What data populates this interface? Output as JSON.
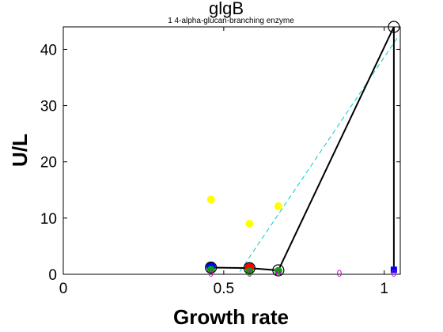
{
  "chart_data": {
    "type": "scatter",
    "title": "glgB",
    "subtitle": "1 4-alpha-glucan-branching enzyme",
    "xlabel": "Growth rate",
    "ylabel": "U/L",
    "xlim": [
      0,
      1.05
    ],
    "ylim": [
      0,
      44
    ],
    "xticks": [
      0,
      0.5,
      1
    ],
    "xtick_labels": [
      "0",
      "0.5",
      "1"
    ],
    "yticks": [
      0,
      10,
      20,
      30,
      40
    ],
    "ytick_labels": [
      "0",
      "10",
      "20",
      "30",
      "40"
    ],
    "grid": false,
    "legend": "none",
    "colors": {
      "yellow": "#ffff00",
      "cyan": "#00cccc",
      "black": "#000000",
      "blue": "#0000ff",
      "red": "#ff0000",
      "green": "#00aa00",
      "magenta": "#cc00cc"
    },
    "black_line": {
      "x": [
        0.46,
        0.58,
        0.67,
        1.03,
        1.03
      ],
      "y": [
        1.2,
        1.1,
        0.7,
        44,
        0.8
      ]
    },
    "cyan_dashed_line": {
      "x": [
        0.55,
        1.04
      ],
      "y": [
        0.5,
        42
      ]
    },
    "yellow_points": {
      "x": [
        0.46,
        0.58,
        0.67
      ],
      "y": [
        13.3,
        9.0,
        12.1
      ]
    },
    "black_circles": {
      "x": [
        0.46,
        0.58,
        0.67,
        1.03
      ],
      "y": [
        1.2,
        1.1,
        0.7,
        44
      ]
    },
    "blue_points": {
      "x": [
        0.46
      ],
      "y": [
        1.3
      ]
    },
    "red_points": {
      "x": [
        0.58
      ],
      "y": [
        1.2
      ]
    },
    "green_points": {
      "x": [
        0.46,
        0.58,
        0.67
      ],
      "y": [
        0.8,
        0.5,
        0.6
      ]
    },
    "blue_square": {
      "x": [
        1.03
      ],
      "y": [
        0.8
      ]
    },
    "annotations": [
      {
        "x": 0.46,
        "y": 0.0,
        "text": "0"
      },
      {
        "x": 0.58,
        "y": 0.0,
        "text": "0"
      },
      {
        "x": 0.67,
        "y": 0.0,
        "text": "0"
      },
      {
        "x": 0.86,
        "y": 0.0,
        "text": "0"
      },
      {
        "x": 1.03,
        "y": 0.0,
        "text": "0"
      }
    ]
  }
}
